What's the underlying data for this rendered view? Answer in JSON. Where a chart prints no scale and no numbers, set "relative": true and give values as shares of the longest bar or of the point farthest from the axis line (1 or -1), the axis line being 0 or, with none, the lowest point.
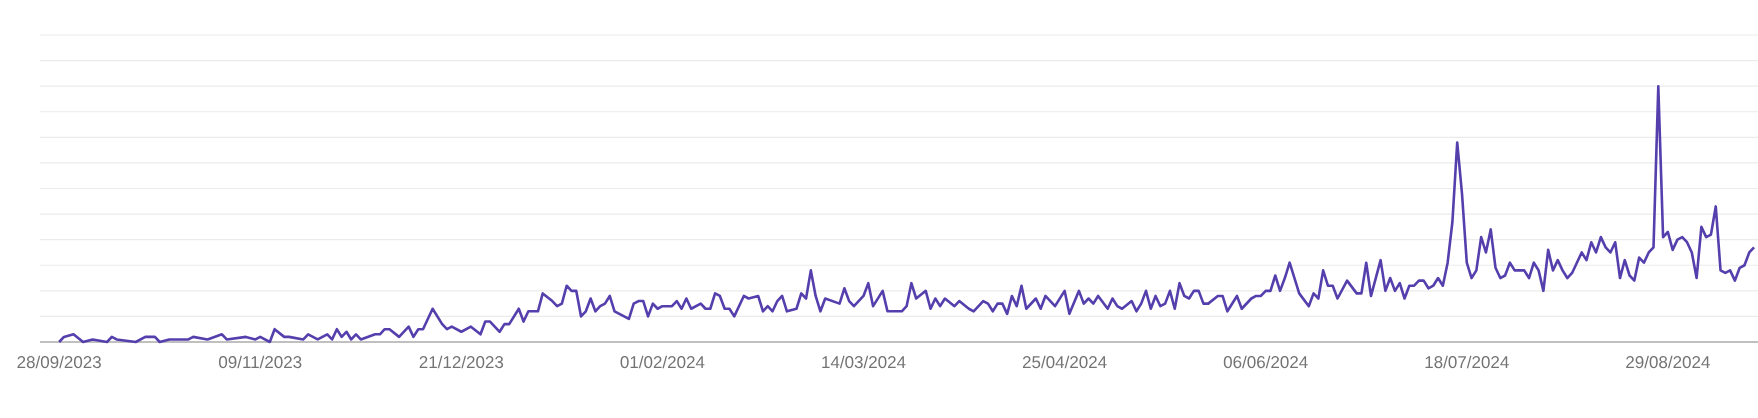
{
  "chart_data": {
    "type": "line",
    "relative": true,
    "grid": "y",
    "marker": "none",
    "line_style": "solid",
    "xlim": [
      "2023-09-24",
      "2024-09-21"
    ],
    "xticks": [
      {
        "value": "2023-09-28",
        "label": "28/09/2023"
      },
      {
        "value": "2023-11-09",
        "label": "09/11/2023"
      },
      {
        "value": "2023-12-21",
        "label": "21/12/2023"
      },
      {
        "value": "2024-02-01",
        "label": "01/02/2024"
      },
      {
        "value": "2024-03-14",
        "label": "14/03/2024"
      },
      {
        "value": "2024-04-25",
        "label": "25/04/2024"
      },
      {
        "value": "2024-06-06",
        "label": "06/06/2024"
      },
      {
        "value": "2024-07-18",
        "label": "18/07/2024"
      },
      {
        "value": "2024-08-29",
        "label": "29/08/2024"
      }
    ],
    "x": [
      "2023-09-28",
      "2023-09-29",
      "2023-10-01",
      "2023-10-03",
      "2023-10-05",
      "2023-10-08",
      "2023-10-09",
      "2023-10-10",
      "2023-10-14",
      "2023-10-16",
      "2023-10-18",
      "2023-10-19",
      "2023-10-21",
      "2023-10-25",
      "2023-10-26",
      "2023-10-29",
      "2023-11-01",
      "2023-11-02",
      "2023-11-06",
      "2023-11-08",
      "2023-11-09",
      "2023-11-11",
      "2023-11-12",
      "2023-11-14",
      "2023-11-15",
      "2023-11-18",
      "2023-11-19",
      "2023-11-21",
      "2023-11-23",
      "2023-11-24",
      "2023-11-25",
      "2023-11-26",
      "2023-11-27",
      "2023-11-28",
      "2023-11-29",
      "2023-11-30",
      "2023-12-03",
      "2023-12-04",
      "2023-12-05",
      "2023-12-06",
      "2023-12-08",
      "2023-12-10",
      "2023-12-11",
      "2023-12-12",
      "2023-12-13",
      "2023-12-15",
      "2023-12-17",
      "2023-12-18",
      "2023-12-19",
      "2023-12-21",
      "2023-12-23",
      "2023-12-25",
      "2023-12-26",
      "2023-12-27",
      "2023-12-29",
      "2023-12-30",
      "2023-12-31",
      "2024-01-02",
      "2024-01-03",
      "2024-01-04",
      "2024-01-05",
      "2024-01-06",
      "2024-01-07",
      "2024-01-09",
      "2024-01-10",
      "2024-01-11",
      "2024-01-12",
      "2024-01-13",
      "2024-01-14",
      "2024-01-15",
      "2024-01-16",
      "2024-01-17",
      "2024-01-18",
      "2024-01-19",
      "2024-01-20",
      "2024-01-21",
      "2024-01-22",
      "2024-01-24",
      "2024-01-25",
      "2024-01-26",
      "2024-01-27",
      "2024-01-28",
      "2024-01-29",
      "2024-01-30",
      "2024-01-31",
      "2024-02-01",
      "2024-02-03",
      "2024-02-04",
      "2024-02-05",
      "2024-02-06",
      "2024-02-07",
      "2024-02-09",
      "2024-02-10",
      "2024-02-11",
      "2024-02-12",
      "2024-02-13",
      "2024-02-14",
      "2024-02-15",
      "2024-02-16",
      "2024-02-18",
      "2024-02-19",
      "2024-02-21",
      "2024-02-22",
      "2024-02-23",
      "2024-02-24",
      "2024-02-25",
      "2024-02-26",
      "2024-02-27",
      "2024-02-29",
      "2024-03-01",
      "2024-03-02",
      "2024-03-03",
      "2024-03-04",
      "2024-03-05",
      "2024-03-06",
      "2024-03-09",
      "2024-03-10",
      "2024-03-11",
      "2024-03-12",
      "2024-03-14",
      "2024-03-15",
      "2024-03-16",
      "2024-03-18",
      "2024-03-19",
      "2024-03-21",
      "2024-03-22",
      "2024-03-23",
      "2024-03-24",
      "2024-03-25",
      "2024-03-27",
      "2024-03-28",
      "2024-03-29",
      "2024-03-30",
      "2024-03-31",
      "2024-04-02",
      "2024-04-03",
      "2024-04-05",
      "2024-04-06",
      "2024-04-08",
      "2024-04-09",
      "2024-04-10",
      "2024-04-11",
      "2024-04-12",
      "2024-04-13",
      "2024-04-14",
      "2024-04-15",
      "2024-04-16",
      "2024-04-17",
      "2024-04-19",
      "2024-04-20",
      "2024-04-21",
      "2024-04-23",
      "2024-04-25",
      "2024-04-26",
      "2024-04-28",
      "2024-04-29",
      "2024-04-30",
      "2024-05-01",
      "2024-05-02",
      "2024-05-04",
      "2024-05-05",
      "2024-05-06",
      "2024-05-07",
      "2024-05-09",
      "2024-05-10",
      "2024-05-11",
      "2024-05-12",
      "2024-05-13",
      "2024-05-14",
      "2024-05-15",
      "2024-05-16",
      "2024-05-17",
      "2024-05-18",
      "2024-05-19",
      "2024-05-20",
      "2024-05-21",
      "2024-05-22",
      "2024-05-23",
      "2024-05-24",
      "2024-05-25",
      "2024-05-27",
      "2024-05-28",
      "2024-05-29",
      "2024-05-31",
      "2024-06-01",
      "2024-06-03",
      "2024-06-04",
      "2024-06-05",
      "2024-06-06",
      "2024-06-07",
      "2024-06-08",
      "2024-06-09",
      "2024-06-10",
      "2024-06-11",
      "2024-06-13",
      "2024-06-15",
      "2024-06-16",
      "2024-06-17",
      "2024-06-18",
      "2024-06-19",
      "2024-06-20",
      "2024-06-21",
      "2024-06-23",
      "2024-06-25",
      "2024-06-26",
      "2024-06-27",
      "2024-06-28",
      "2024-06-30",
      "2024-07-01",
      "2024-07-02",
      "2024-07-03",
      "2024-07-04",
      "2024-07-05",
      "2024-07-06",
      "2024-07-07",
      "2024-07-08",
      "2024-07-09",
      "2024-07-10",
      "2024-07-11",
      "2024-07-12",
      "2024-07-13",
      "2024-07-14",
      "2024-07-15",
      "2024-07-16",
      "2024-07-17",
      "2024-07-18",
      "2024-07-19",
      "2024-07-20",
      "2024-07-21",
      "2024-07-22",
      "2024-07-23",
      "2024-07-24",
      "2024-07-25",
      "2024-07-26",
      "2024-07-27",
      "2024-07-28",
      "2024-07-30",
      "2024-07-31",
      "2024-08-01",
      "2024-08-02",
      "2024-08-03",
      "2024-08-04",
      "2024-08-05",
      "2024-08-06",
      "2024-08-07",
      "2024-08-08",
      "2024-08-09",
      "2024-08-11",
      "2024-08-12",
      "2024-08-13",
      "2024-08-14",
      "2024-08-15",
      "2024-08-16",
      "2024-08-17",
      "2024-08-18",
      "2024-08-19",
      "2024-08-20",
      "2024-08-21",
      "2024-08-22",
      "2024-08-23",
      "2024-08-24",
      "2024-08-25",
      "2024-08-26",
      "2024-08-27",
      "2024-08-28",
      "2024-08-29",
      "2024-08-30",
      "2024-08-31",
      "2024-09-01",
      "2024-09-02",
      "2024-09-03",
      "2024-09-04",
      "2024-09-05",
      "2024-09-06",
      "2024-09-07",
      "2024-09-08",
      "2024-09-09",
      "2024-09-10",
      "2024-09-11",
      "2024-09-12",
      "2024-09-13",
      "2024-09-14",
      "2024-09-15",
      "2024-09-16"
    ],
    "series": [
      {
        "color": "#553fad",
        "values": [
          0.0,
          0.02,
          0.03,
          0.0,
          0.01,
          0.0,
          0.02,
          0.01,
          0.0,
          0.02,
          0.02,
          0.0,
          0.01,
          0.01,
          0.02,
          0.01,
          0.03,
          0.01,
          0.02,
          0.01,
          0.02,
          0.0,
          0.05,
          0.02,
          0.02,
          0.01,
          0.03,
          0.01,
          0.03,
          0.01,
          0.05,
          0.02,
          0.04,
          0.01,
          0.03,
          0.01,
          0.03,
          0.03,
          0.05,
          0.05,
          0.02,
          0.06,
          0.02,
          0.05,
          0.05,
          0.13,
          0.07,
          0.05,
          0.06,
          0.04,
          0.06,
          0.03,
          0.08,
          0.08,
          0.04,
          0.07,
          0.07,
          0.13,
          0.08,
          0.12,
          0.12,
          0.12,
          0.19,
          0.16,
          0.14,
          0.15,
          0.22,
          0.2,
          0.2,
          0.1,
          0.12,
          0.17,
          0.12,
          0.14,
          0.15,
          0.18,
          0.12,
          0.1,
          0.09,
          0.15,
          0.16,
          0.16,
          0.1,
          0.15,
          0.13,
          0.14,
          0.14,
          0.16,
          0.13,
          0.17,
          0.13,
          0.15,
          0.13,
          0.13,
          0.19,
          0.18,
          0.13,
          0.13,
          0.1,
          0.18,
          0.17,
          0.18,
          0.12,
          0.14,
          0.12,
          0.16,
          0.18,
          0.12,
          0.13,
          0.19,
          0.17,
          0.28,
          0.18,
          0.12,
          0.17,
          0.15,
          0.21,
          0.16,
          0.14,
          0.18,
          0.23,
          0.14,
          0.2,
          0.12,
          0.12,
          0.12,
          0.14,
          0.23,
          0.17,
          0.2,
          0.13,
          0.17,
          0.14,
          0.17,
          0.14,
          0.16,
          0.13,
          0.12,
          0.16,
          0.15,
          0.12,
          0.15,
          0.15,
          0.11,
          0.18,
          0.14,
          0.22,
          0.13,
          0.17,
          0.13,
          0.18,
          0.14,
          0.2,
          0.11,
          0.2,
          0.15,
          0.17,
          0.15,
          0.18,
          0.13,
          0.17,
          0.14,
          0.13,
          0.16,
          0.12,
          0.15,
          0.2,
          0.13,
          0.18,
          0.14,
          0.15,
          0.2,
          0.13,
          0.23,
          0.18,
          0.17,
          0.2,
          0.2,
          0.15,
          0.15,
          0.18,
          0.18,
          0.12,
          0.18,
          0.13,
          0.17,
          0.18,
          0.18,
          0.2,
          0.2,
          0.26,
          0.2,
          0.25,
          0.31,
          0.19,
          0.14,
          0.19,
          0.17,
          0.28,
          0.22,
          0.22,
          0.17,
          0.24,
          0.19,
          0.19,
          0.31,
          0.18,
          0.32,
          0.2,
          0.25,
          0.2,
          0.23,
          0.17,
          0.22,
          0.22,
          0.24,
          0.24,
          0.21,
          0.22,
          0.25,
          0.22,
          0.31,
          0.47,
          0.78,
          0.58,
          0.31,
          0.25,
          0.28,
          0.41,
          0.35,
          0.44,
          0.29,
          0.25,
          0.26,
          0.31,
          0.28,
          0.28,
          0.25,
          0.31,
          0.28,
          0.2,
          0.36,
          0.28,
          0.32,
          0.28,
          0.25,
          0.27,
          0.35,
          0.32,
          0.39,
          0.35,
          0.41,
          0.37,
          0.35,
          0.39,
          0.25,
          0.32,
          0.26,
          0.24,
          0.33,
          0.31,
          0.35,
          0.37,
          1.0,
          0.41,
          0.43,
          0.36,
          0.4,
          0.41,
          0.39,
          0.35,
          0.25,
          0.45,
          0.41,
          0.42,
          0.53,
          0.28,
          0.27,
          0.28,
          0.24,
          0.29,
          0.3,
          0.35,
          0.37
        ]
      }
    ]
  }
}
